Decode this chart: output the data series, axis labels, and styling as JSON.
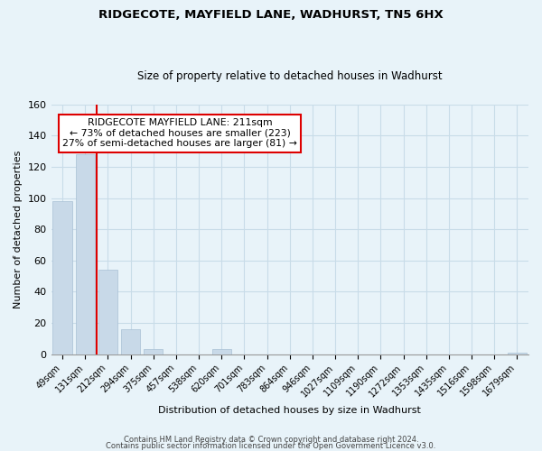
{
  "title": "RIDGECOTE, MAYFIELD LANE, WADHURST, TN5 6HX",
  "subtitle": "Size of property relative to detached houses in Wadhurst",
  "xlabel": "Distribution of detached houses by size in Wadhurst",
  "ylabel": "Number of detached properties",
  "footnote1": "Contains HM Land Registry data © Crown copyright and database right 2024.",
  "footnote2": "Contains public sector information licensed under the Open Government Licence v3.0.",
  "bar_labels": [
    "49sqm",
    "131sqm",
    "212sqm",
    "294sqm",
    "375sqm",
    "457sqm",
    "538sqm",
    "620sqm",
    "701sqm",
    "783sqm",
    "864sqm",
    "946sqm",
    "1027sqm",
    "1109sqm",
    "1190sqm",
    "1272sqm",
    "1353sqm",
    "1435sqm",
    "1516sqm",
    "1598sqm",
    "1679sqm"
  ],
  "bar_values": [
    98,
    128,
    54,
    16,
    3,
    0,
    0,
    3,
    0,
    0,
    0,
    0,
    0,
    0,
    0,
    0,
    0,
    0,
    0,
    0,
    1
  ],
  "bar_color": "#c8d9e8",
  "red_line_x": 1.5,
  "red_line_color": "#dd0000",
  "ylim": [
    0,
    160
  ],
  "yticks": [
    0,
    20,
    40,
    60,
    80,
    100,
    120,
    140,
    160
  ],
  "annotation_line1": "RIDGECOTE MAYFIELD LANE: 211sqm",
  "annotation_line2": "← 73% of detached houses are smaller (223)",
  "annotation_line3": "27% of semi-detached houses are larger (81) →",
  "annotation_box_color": "#ffffff",
  "annotation_border_color": "#dd0000",
  "grid_color": "#c8dce8",
  "background_color": "#e8f3f9",
  "title_fontsize": 9.5,
  "subtitle_fontsize": 8.5
}
